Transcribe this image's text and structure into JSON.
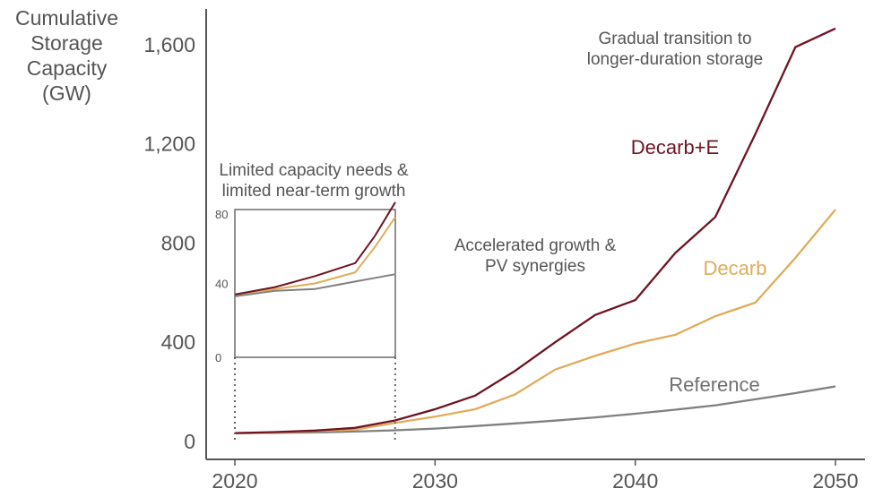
{
  "chart_data": {
    "type": "line",
    "title": "",
    "ylabel": "Cumulative\nStorage\nCapacity\n(GW)",
    "xlabel": "",
    "xlim": [
      2020,
      2050
    ],
    "ylim": [
      0,
      1700
    ],
    "x_ticks": [
      "2020",
      "2030",
      "2040",
      "2050"
    ],
    "y_ticks": [
      "0",
      "400",
      "800",
      "1,200",
      "1,600"
    ],
    "x_tick_values": [
      2020,
      2030,
      2040,
      2050
    ],
    "y_tick_values": [
      0,
      400,
      800,
      1200,
      1600
    ],
    "x": [
      2020,
      2022,
      2024,
      2026,
      2028,
      2030,
      2032,
      2034,
      2036,
      2038,
      2040,
      2042,
      2044,
      2046,
      2048,
      2050
    ],
    "series": [
      {
        "name": "Reference",
        "color": "#808080",
        "values": [
          33,
          35,
          37,
          40,
          45,
          52,
          62,
          73,
          84,
          97,
          112,
          128,
          146,
          170,
          195,
          222
        ]
      },
      {
        "name": "Decarb",
        "color": "#E0AC5C",
        "values": [
          33,
          37,
          42,
          48,
          75,
          100,
          130,
          190,
          290,
          345,
          395,
          430,
          505,
          560,
          740,
          935
        ]
      },
      {
        "name": "Decarb+E",
        "color": "#6E1423",
        "values": [
          34,
          38,
          44,
          55,
          85,
          130,
          185,
          285,
          400,
          510,
          570,
          760,
          905,
          1240,
          1590,
          1665
        ]
      }
    ],
    "inset": {
      "xlim": [
        2020,
        2028
      ],
      "ylim": [
        0,
        80
      ],
      "y_ticks": [
        "0",
        "40",
        "80"
      ],
      "y_tick_values": [
        0,
        40,
        80
      ],
      "x": [
        2020,
        2022,
        2024,
        2026,
        2027,
        2028
      ],
      "series": [
        {
          "name": "Reference",
          "values": [
            33,
            36,
            37,
            41,
            43,
            45
          ]
        },
        {
          "name": "Decarb",
          "values": [
            34,
            37,
            40,
            46,
            60,
            76
          ]
        },
        {
          "name": "Decarb+E",
          "values": [
            34,
            38,
            44,
            51,
            66,
            84
          ]
        }
      ]
    },
    "annotations": [
      {
        "text": "Gradual transition to\nlonger-duration storage",
        "color": "#555555"
      },
      {
        "text": "Decarb+E",
        "color": "#6E1423"
      },
      {
        "text": "Limited capacity needs &\nlimited near-term growth",
        "color": "#555555"
      },
      {
        "text": "Accelerated growth &\nPV synergies",
        "color": "#555555"
      },
      {
        "text": "Decarb",
        "color": "#E0AC5C"
      },
      {
        "text": "Reference",
        "color": "#707070"
      }
    ]
  }
}
